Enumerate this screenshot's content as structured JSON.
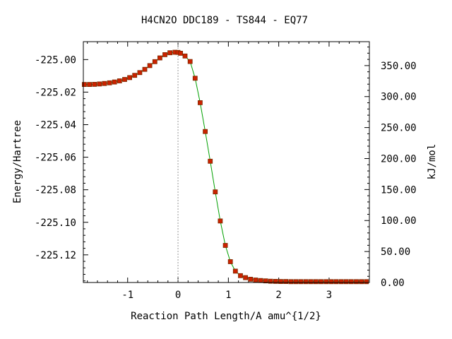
{
  "chart_data": {
    "type": "line",
    "title": "H4CN2O   DDC189 - TS844 - EQ77",
    "xlabel": "Reaction Path Length/A amu^{1/2}",
    "ylabel": "Energy/Hartree",
    "y2label": "kJ/mol",
    "xlim": [
      -1.88,
      3.8
    ],
    "ylim": [
      -225.137,
      -224.989
    ],
    "y2lim": [
      0,
      388.6
    ],
    "x_ticks": [
      -1,
      0,
      1,
      2,
      3
    ],
    "x_tick_labels": [
      "-1",
      "0",
      "1",
      "2",
      "3"
    ],
    "y_ticks": [
      -225.0,
      -225.02,
      -225.04,
      -225.06,
      -225.08,
      -225.1,
      -225.12
    ],
    "y_tick_labels": [
      "-225.00",
      "-225.02",
      "-225.04",
      "-225.06",
      "-225.08",
      "-225.10",
      "-225.12"
    ],
    "y2_ticks": [
      0,
      50,
      100,
      150,
      200,
      250,
      300,
      350
    ],
    "y2_tick_labels": [
      "0.00",
      "50.00",
      "100.00",
      "150.00",
      "200.00",
      "250.00",
      "300.00",
      "350.00"
    ],
    "ts_marker_x": 0,
    "colors": {
      "line": "#00a000",
      "marker": "#cc2200",
      "marker_edge": "#7a2a00",
      "ts_line": "#999999"
    },
    "series": [
      {
        "x": [
          -1.86,
          -1.76,
          -1.66,
          -1.56,
          -1.46,
          -1.36,
          -1.26,
          -1.16,
          -1.06,
          -0.96,
          -0.86,
          -0.76,
          -0.66,
          -0.56,
          -0.46,
          -0.36,
          -0.26,
          -0.16,
          -0.06,
          0.0,
          0.05,
          0.14,
          0.24,
          0.34,
          0.44,
          0.54,
          0.64,
          0.74,
          0.84,
          0.94,
          1.04,
          1.14,
          1.24,
          1.34,
          1.44,
          1.54,
          1.64,
          1.74,
          1.84,
          1.94,
          2.04,
          2.14,
          2.24,
          2.34,
          2.44,
          2.54,
          2.64,
          2.74,
          2.84,
          2.94,
          3.04,
          3.14,
          3.24,
          3.34,
          3.44,
          3.54,
          3.64,
          3.74
        ],
        "y": [
          -225.0153,
          -225.0153,
          -225.0152,
          -225.015,
          -225.0147,
          -225.0143,
          -225.0138,
          -225.0131,
          -225.0122,
          -225.0111,
          -225.0097,
          -225.008,
          -225.006,
          -225.0037,
          -225.0013,
          -224.999,
          -224.997,
          -224.9958,
          -224.9955,
          -224.9956,
          -224.9961,
          -224.9978,
          -225.0012,
          -225.0115,
          -225.0265,
          -225.0442,
          -225.0625,
          -225.0813,
          -225.0992,
          -225.1142,
          -225.1242,
          -225.13,
          -225.1328,
          -225.134,
          -225.135,
          -225.1355,
          -225.1358,
          -225.136,
          -225.1362,
          -225.1363,
          -225.1364,
          -225.1364,
          -225.1365,
          -225.1365,
          -225.1365,
          -225.1365,
          -225.1365,
          -225.1365,
          -225.1365,
          -225.1365,
          -225.1365,
          -225.1365,
          -225.1365,
          -225.1365,
          -225.1365,
          -225.1365,
          -225.1365,
          -225.1365
        ]
      }
    ]
  }
}
